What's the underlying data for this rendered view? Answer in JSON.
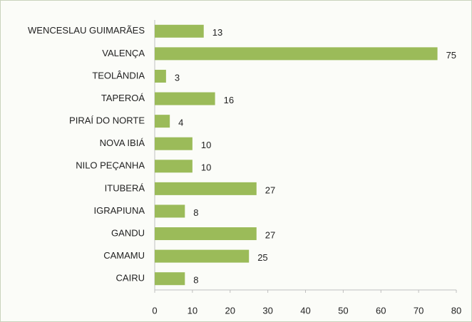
{
  "chart_data": {
    "type": "bar",
    "orientation": "horizontal",
    "categories": [
      "WENCESLAU GUIMARÃES",
      "VALENÇA",
      "TEOLÂNDIA",
      "TAPEROÁ",
      "PIRAÍ DO NORTE",
      "NOVA IBIÁ",
      "NILO PEÇANHA",
      "ITUBERÁ",
      "IGRAPIUNA",
      "GANDU",
      "CAMAMU",
      "CAIRU"
    ],
    "values": [
      13,
      75,
      3,
      16,
      4,
      10,
      10,
      27,
      8,
      27,
      25,
      8
    ],
    "color": "#9bbb59",
    "xlim": [
      0,
      80
    ],
    "xticks": [
      0,
      10,
      20,
      30,
      40,
      50,
      60,
      70,
      80
    ],
    "grid": false
  }
}
